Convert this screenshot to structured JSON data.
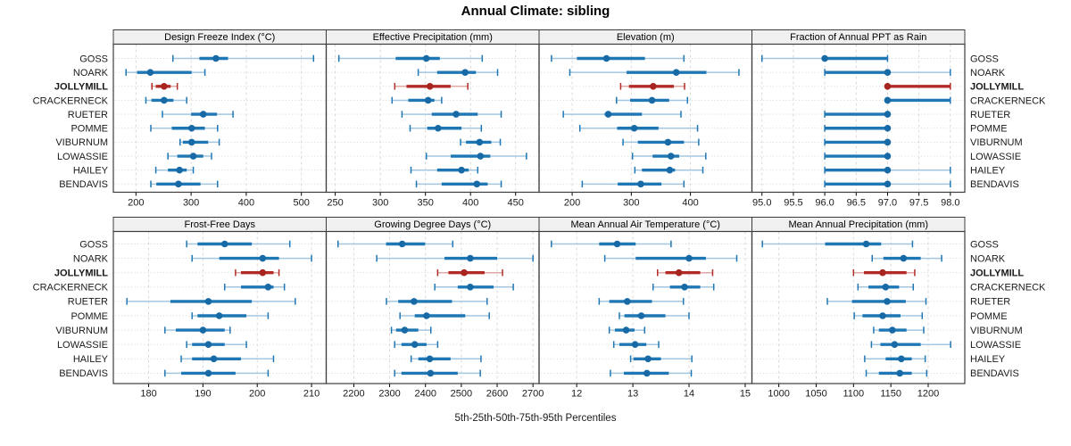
{
  "title": "Annual Climate: sibling",
  "caption": "5th-25th-50th-75th-95th Percentiles",
  "sites": [
    "GOSS",
    "NOARK",
    "JOLLYMILL",
    "CRACKERNECK",
    "RUETER",
    "POMME",
    "VIBURNUM",
    "LOWASSIE",
    "HAILEY",
    "BENDAVIS"
  ],
  "highlight_site": "JOLLYMILL",
  "colors": {
    "blue": "#1f77b4",
    "blue_light": "#a3c7e0",
    "blue_dot": "#176aa6",
    "red": "#b32b26",
    "red_light": "#dfaaa6",
    "red_dot": "#a8241e",
    "grid": "#d6d6d6",
    "row_grid": "#cfcfcf",
    "header_bg": "#f0f0f0",
    "border": "#3c3c3c",
    "text": "#1a1a1a"
  },
  "chart_data": {
    "type": "dot-interval",
    "percentile_levels": [
      5,
      25,
      50,
      75,
      95
    ],
    "categories": [
      "GOSS",
      "NOARK",
      "JOLLYMILL",
      "CRACKERNECK",
      "RUETER",
      "POMME",
      "VIBURNUM",
      "LOWASSIE",
      "HAILEY",
      "BENDAVIS"
    ],
    "highlight": "JOLLYMILL",
    "panels": [
      {
        "title": "Design Freeze Index (°C)",
        "xlim": [
          159,
          545
        ],
        "ticks": [
          200,
          300,
          400,
          500
        ],
        "tick_labels": [
          "200",
          "300",
          "400",
          "500"
        ],
        "values": [
          [
            267,
            315,
            345,
            367,
            522
          ],
          [
            182,
            202,
            226,
            301,
            325
          ],
          [
            229,
            236,
            251,
            263,
            275
          ],
          [
            218,
            228,
            251,
            268,
            292
          ],
          [
            248,
            300,
            322,
            347,
            376
          ],
          [
            227,
            265,
            301,
            325,
            348
          ],
          [
            280,
            285,
            301,
            331,
            351
          ],
          [
            258,
            275,
            304,
            322,
            337
          ],
          [
            236,
            258,
            279,
            292,
            304
          ],
          [
            227,
            237,
            277,
            317,
            348
          ]
        ]
      },
      {
        "title": "Effective Precipitation (mm)",
        "xlim": [
          240,
          476
        ],
        "ticks": [
          250,
          300,
          350,
          400,
          450
        ],
        "tick_labels": [
          "250",
          "300",
          "350",
          "400",
          "450"
        ],
        "values": [
          [
            254,
            317,
            351,
            366,
            413
          ],
          [
            342,
            363,
            394,
            406,
            430
          ],
          [
            316,
            329,
            355,
            378,
            397
          ],
          [
            313,
            331,
            353,
            360,
            368
          ],
          [
            324,
            357,
            384,
            408,
            434
          ],
          [
            333,
            352,
            364,
            390,
            412
          ],
          [
            389,
            395,
            410,
            423,
            433
          ],
          [
            351,
            378,
            411,
            422,
            462
          ],
          [
            334,
            363,
            390,
            398,
            408
          ],
          [
            340,
            368,
            407,
            419,
            434
          ]
        ]
      },
      {
        "title": "Elevation (m)",
        "xlim": [
          144,
          504
        ],
        "ticks": [
          200,
          300,
          400
        ],
        "tick_labels": [
          "200",
          "300",
          "400"
        ],
        "values": [
          [
            165,
            208,
            258,
            323,
            389
          ],
          [
            196,
            292,
            376,
            427,
            482
          ],
          [
            282,
            296,
            337,
            372,
            390
          ],
          [
            275,
            298,
            335,
            364,
            395
          ],
          [
            185,
            255,
            261,
            318,
            384
          ],
          [
            213,
            276,
            305,
            346,
            412
          ],
          [
            286,
            311,
            362,
            389,
            414
          ],
          [
            302,
            336,
            367,
            381,
            426
          ],
          [
            306,
            318,
            365,
            374,
            421
          ],
          [
            217,
            277,
            316,
            351,
            389
          ]
        ]
      },
      {
        "title": "Fraction of Annual PPT as Rain",
        "xlim": [
          94.84,
          98.23
        ],
        "ticks": [
          95.0,
          95.5,
          96.0,
          96.5,
          97.0,
          97.5,
          98.0
        ],
        "tick_labels": [
          "95.0",
          "95.5",
          "96.0",
          "96.5",
          "97.0",
          "97.5",
          "98.0"
        ],
        "values": [
          [
            95,
            96,
            96,
            97,
            97
          ],
          [
            96,
            96,
            97,
            97,
            98
          ],
          [
            97,
            97,
            97,
            98,
            98
          ],
          [
            97,
            97,
            97,
            98,
            98
          ],
          [
            96,
            96,
            97,
            97,
            97
          ],
          [
            96,
            96,
            97,
            97,
            97
          ],
          [
            96,
            96,
            97,
            97,
            97
          ],
          [
            96,
            96,
            97,
            97,
            97
          ],
          [
            96,
            96,
            97,
            97,
            98
          ],
          [
            96,
            96,
            97,
            97,
            98
          ]
        ]
      },
      {
        "title": "Frost-Free Days",
        "xlim": [
          173.5,
          212.7
        ],
        "ticks": [
          180,
          190,
          200,
          210
        ],
        "tick_labels": [
          "180",
          "190",
          "200",
          "210"
        ],
        "values": [
          [
            187,
            189,
            194,
            199,
            206
          ],
          [
            188,
            193,
            201,
            204,
            210
          ],
          [
            196,
            197,
            201,
            203,
            204
          ],
          [
            194,
            197,
            202,
            203,
            205
          ],
          [
            176,
            184,
            191,
            199,
            207
          ],
          [
            188,
            189,
            193,
            198,
            202
          ],
          [
            183,
            185,
            190,
            194,
            195
          ],
          [
            187,
            188,
            191,
            194,
            198
          ],
          [
            186,
            188,
            192,
            197,
            203
          ],
          [
            183,
            186,
            191,
            196,
            202
          ]
        ]
      },
      {
        "title": "Growing Degree Days (°C)",
        "xlim": [
          2123,
          2717
        ],
        "ticks": [
          2200,
          2300,
          2400,
          2500,
          2600,
          2700
        ],
        "tick_labels": [
          "2200",
          "2300",
          "2400",
          "2500",
          "2600",
          "2700"
        ],
        "values": [
          [
            2156,
            2290,
            2335,
            2399,
            2476
          ],
          [
            2264,
            2453,
            2525,
            2600,
            2700
          ],
          [
            2434,
            2464,
            2508,
            2565,
            2615
          ],
          [
            2426,
            2490,
            2525,
            2590,
            2645
          ],
          [
            2291,
            2324,
            2368,
            2474,
            2572
          ],
          [
            2329,
            2370,
            2403,
            2511,
            2578
          ],
          [
            2305,
            2318,
            2342,
            2380,
            2415
          ],
          [
            2314,
            2333,
            2370,
            2403,
            2434
          ],
          [
            2360,
            2380,
            2412,
            2470,
            2555
          ],
          [
            2314,
            2333,
            2414,
            2490,
            2553
          ]
        ]
      },
      {
        "title": "Mean Annual Air Temperature (°C)",
        "xlim": [
          11.33,
          15.12
        ],
        "ticks": [
          12,
          13,
          14,
          15
        ],
        "tick_labels": [
          "12",
          "13",
          "14",
          "15"
        ],
        "values": [
          [
            11.55,
            12.4,
            12.72,
            13.05,
            13.68
          ],
          [
            12.5,
            13.05,
            14.0,
            14.3,
            14.85
          ],
          [
            13.44,
            13.58,
            13.82,
            14.2,
            14.42
          ],
          [
            13.36,
            13.66,
            13.92,
            14.2,
            14.44
          ],
          [
            12.4,
            12.58,
            12.9,
            13.34,
            13.9
          ],
          [
            12.76,
            12.85,
            13.15,
            13.58,
            14.0
          ],
          [
            12.58,
            12.68,
            12.88,
            13.03,
            13.21
          ],
          [
            12.66,
            12.76,
            13.04,
            13.24,
            13.46
          ],
          [
            12.96,
            13.01,
            13.27,
            13.5,
            14.05
          ],
          [
            12.6,
            12.84,
            13.25,
            13.64,
            14.04
          ]
        ]
      },
      {
        "title": "Mean Annual Precipitation (mm)",
        "xlim": [
          964,
          1249
        ],
        "ticks": [
          1000,
          1050,
          1100,
          1150,
          1200
        ],
        "tick_labels": [
          "1000",
          "1050",
          "1100",
          "1150",
          "1200"
        ],
        "values": [
          [
            978,
            1062,
            1117,
            1137,
            1179
          ],
          [
            1125,
            1140,
            1167,
            1190,
            1218
          ],
          [
            1100,
            1114,
            1139,
            1171,
            1182
          ],
          [
            1106,
            1120,
            1143,
            1161,
            1180
          ],
          [
            1065,
            1098,
            1145,
            1170,
            1197
          ],
          [
            1101,
            1112,
            1139,
            1163,
            1192
          ],
          [
            1127,
            1134,
            1152,
            1171,
            1194
          ],
          [
            1124,
            1136,
            1155,
            1190,
            1230
          ],
          [
            1115,
            1143,
            1164,
            1178,
            1196
          ],
          [
            1117,
            1134,
            1162,
            1178,
            1198
          ]
        ]
      }
    ]
  }
}
